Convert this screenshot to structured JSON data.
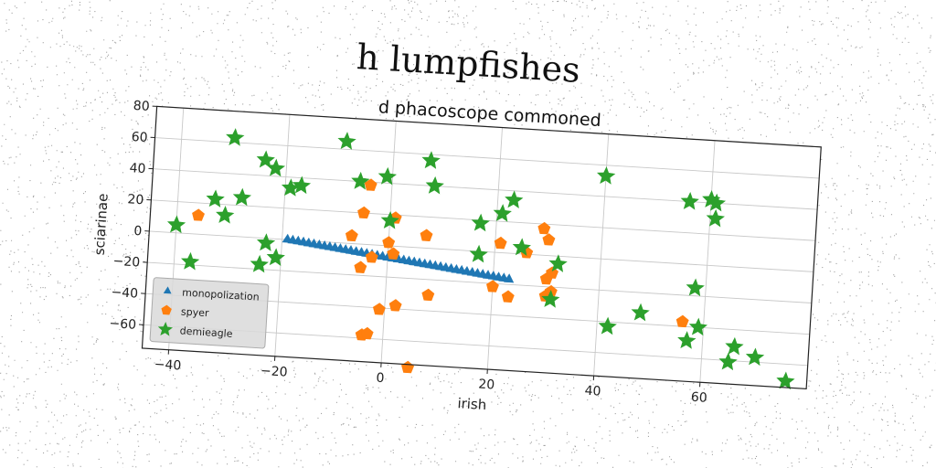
{
  "figure_title": "h lumpfishes",
  "chart_data": {
    "type": "scatter",
    "title": "d phacoscope commoned",
    "xlabel": "irish",
    "ylabel": "sciarinae",
    "xlim": [
      -45,
      80
    ],
    "ylim": [
      -75,
      80
    ],
    "xticks": [
      -40,
      -20,
      0,
      20,
      40,
      60
    ],
    "yticks": [
      -60,
      -40,
      -20,
      0,
      20,
      40,
      60,
      80
    ],
    "grid": true,
    "legend_position": "lower-left",
    "series": [
      {
        "name": "monopolization",
        "marker": "triangle",
        "color": "#1f77b4",
        "points": [
          [
            -19,
            0
          ],
          [
            -18,
            -0.4
          ],
          [
            -17,
            -0.8
          ],
          [
            -16,
            -1.2
          ],
          [
            -15,
            -1.6
          ],
          [
            -14,
            -2
          ],
          [
            -13,
            -2.4
          ],
          [
            -12,
            -2.8
          ],
          [
            -11,
            -3.2
          ],
          [
            -10,
            -3.6
          ],
          [
            -9,
            -4
          ],
          [
            -8,
            -4.4
          ],
          [
            -7,
            -4.8
          ],
          [
            -6,
            -5.2
          ],
          [
            -5,
            -5.6
          ],
          [
            -4,
            -6
          ],
          [
            -3,
            -6.4
          ],
          [
            -2,
            -6.8
          ],
          [
            -1,
            -7.2
          ],
          [
            0,
            -7.6
          ],
          [
            1,
            -8
          ],
          [
            2,
            -8.4
          ],
          [
            3,
            -8.8
          ],
          [
            4,
            -9.2
          ],
          [
            5,
            -9.6
          ],
          [
            6,
            -10
          ],
          [
            7,
            -10.4
          ],
          [
            8,
            -10.8
          ],
          [
            9,
            -11.2
          ],
          [
            10,
            -11.6
          ],
          [
            11,
            -12
          ],
          [
            12,
            -12.4
          ],
          [
            13,
            -12.8
          ],
          [
            14,
            -13.2
          ],
          [
            15,
            -13.6
          ],
          [
            16,
            -14
          ],
          [
            17,
            -14.4
          ],
          [
            18,
            -14.8
          ],
          [
            19,
            -15.2
          ],
          [
            20,
            -15.6
          ],
          [
            21,
            -16
          ],
          [
            22,
            -16.4
          ],
          [
            23,
            -16.8
          ]
        ]
      },
      {
        "name": "spyer",
        "marker": "pentagon",
        "color": "#ff7f0e",
        "points": [
          [
            -36,
            12
          ],
          [
            -4,
            38
          ],
          [
            -5,
            20
          ],
          [
            -7,
            5
          ],
          [
            -5,
            -15
          ],
          [
            -3,
            -8
          ],
          [
            1,
            18
          ],
          [
            0,
            2
          ],
          [
            1,
            -5
          ],
          [
            7,
            8
          ],
          [
            -1,
            -41
          ],
          [
            2,
            -38
          ],
          [
            -4,
            -58
          ],
          [
            -3,
            -57
          ],
          [
            8,
            -30
          ],
          [
            5,
            -77
          ],
          [
            20,
            -22
          ],
          [
            23,
            -28
          ],
          [
            21,
            6
          ],
          [
            26,
            1
          ],
          [
            30,
            -15
          ],
          [
            31,
            -11
          ],
          [
            29,
            17
          ],
          [
            30,
            10
          ],
          [
            30,
            -26
          ],
          [
            31,
            -23
          ],
          [
            56,
            -37
          ]
        ]
      },
      {
        "name": "demieagle",
        "marker": "star",
        "color": "#2ca02c",
        "points": [
          [
            -40,
            5
          ],
          [
            -37,
            -18
          ],
          [
            -33,
            23
          ],
          [
            -31,
            13
          ],
          [
            -28,
            25
          ],
          [
            -30,
            63
          ],
          [
            -24,
            50
          ],
          [
            -22,
            45
          ],
          [
            -19,
            33
          ],
          [
            -17,
            35
          ],
          [
            -23,
            -3
          ],
          [
            -24,
            -17
          ],
          [
            -21,
            -12
          ],
          [
            -9,
            65
          ],
          [
            -6,
            40
          ],
          [
            -1,
            44
          ],
          [
            0,
            16
          ],
          [
            7,
            56
          ],
          [
            8,
            40
          ],
          [
            17,
            18
          ],
          [
            17,
            -2
          ],
          [
            21,
            25
          ],
          [
            23,
            34
          ],
          [
            25,
            4
          ],
          [
            32,
            -5
          ],
          [
            31,
            -28
          ],
          [
            40,
            53
          ],
          [
            42,
            -43
          ],
          [
            48,
            -33
          ],
          [
            56,
            40
          ],
          [
            57,
            -49
          ],
          [
            59,
            -40
          ],
          [
            60,
            42
          ],
          [
            61,
            40
          ],
          [
            61,
            30
          ],
          [
            58,
            -15
          ],
          [
            65,
            -61
          ],
          [
            66,
            -51
          ],
          [
            70,
            -57
          ],
          [
            76,
            -71
          ]
        ]
      }
    ]
  }
}
